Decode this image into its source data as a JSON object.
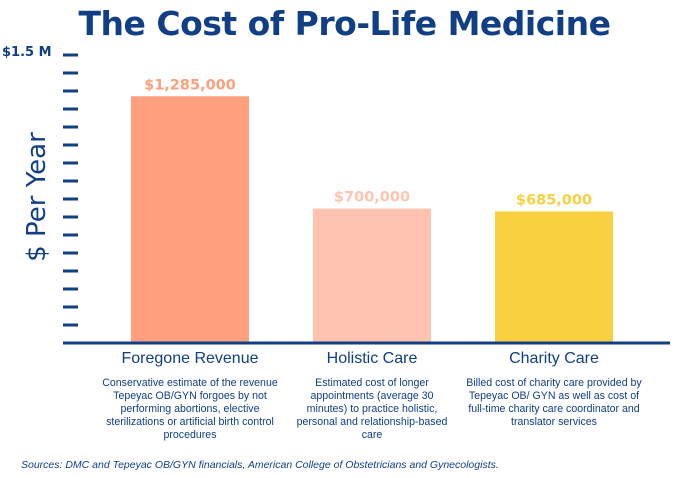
{
  "chart_data": {
    "type": "bar",
    "title": "The Cost of Pro-Life Medicine",
    "ylabel": "$ Per Year",
    "ytop_label": "$1.5 M",
    "ylim": [
      0,
      1500000
    ],
    "categories": [
      "Foregone Revenue",
      "Holistic Care",
      "Charity Care"
    ],
    "values": [
      1285000,
      700000,
      685000
    ],
    "value_labels": [
      "$1,285,000",
      "$700,000",
      "$685,000"
    ],
    "bar_colors": [
      "#ff9f7d",
      "#ffc3b0",
      "#f9d040"
    ],
    "value_label_colors": [
      "#ff9f7d",
      "#ffc3b0",
      "#f9d040"
    ],
    "descriptions": [
      "Conservative estimate of the revenue Tepeyac OB/GYN forgoes by not performing abortions, elective sterilizations or artificial birth control procedures",
      "Estimated cost of longer appointments (average 30 minutes) to practice holistic, personal and relationship-based care",
      "Billed cost of charity care provided by Tepeyac OB/ GYN as well as cost of full-time charity care coordinator and translator services"
    ],
    "source": "Sources: DMC and Tepeyac OB/GYN financials, American College of Obstetricians and Gynecologists.",
    "tick_count": 16,
    "axis_color": "#103f86"
  }
}
